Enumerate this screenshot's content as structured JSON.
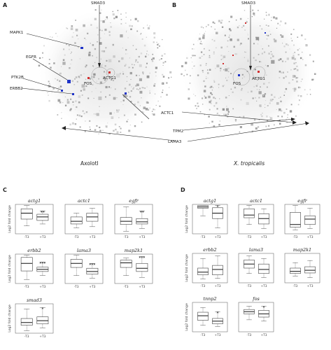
{
  "panels": {
    "A": "A",
    "B": "B",
    "C": "C",
    "D": "D"
  },
  "network_labels": {
    "smad3": "SMAD3",
    "mapk1": "MAPK1",
    "egfr": "EGFR",
    "ptk2b": "PTK2B",
    "erbb2": "ERBB2",
    "fos": "FOS",
    "actg1": "ACTG1",
    "actc1": "ACTC1",
    "tpm2": "TPM2",
    "lama3": "LAMA3"
  },
  "species": {
    "left": "Axolotl",
    "right": "X. tropicalis"
  },
  "colors": {
    "up": "#d32f2f",
    "down": "#1f33c8",
    "node": "#bdbdbd"
  },
  "panel_c": [
    {
      "title": "actg1",
      "ylabel": "Log2 fold change",
      "x_labels": [
        "-T3",
        "+T3"
      ],
      "sig": "**",
      "minus": [
        0.25,
        0.5,
        0.72,
        0.88,
        1.0
      ],
      "plus": [
        0.32,
        0.45,
        0.58,
        0.68,
        0.8
      ]
    },
    {
      "title": "actc1",
      "x_labels": [
        "-T3",
        "+T3"
      ],
      "sig": "",
      "minus": [
        0.18,
        0.32,
        0.42,
        0.58,
        0.72
      ],
      "plus": [
        0.22,
        0.42,
        0.58,
        0.72,
        0.9
      ]
    },
    {
      "title": "egfr",
      "x_labels": [
        "-T3",
        "+T3"
      ],
      "sig": "**",
      "minus": [
        0.05,
        0.3,
        0.42,
        0.56,
        0.95
      ],
      "plus": [
        0.15,
        0.32,
        0.4,
        0.52,
        0.8
      ]
    },
    {
      "title": "erbb2",
      "ylabel": "Log2 fold change",
      "x_labels": [
        "-T3",
        "+T3"
      ],
      "sig": "***",
      "minus": [
        0.1,
        0.42,
        0.7,
        0.92,
        1.0
      ],
      "plus": [
        0.25,
        0.4,
        0.48,
        0.56,
        0.75
      ]
    },
    {
      "title": "lama3",
      "x_labels": [
        "-T3",
        "+T3"
      ],
      "sig": "***",
      "minus": [
        0.25,
        0.55,
        0.7,
        0.85,
        1.0
      ],
      "plus": [
        0.15,
        0.3,
        0.4,
        0.52,
        0.7
      ]
    },
    {
      "title": "map2k1",
      "x_labels": [
        "-T3",
        "+T3"
      ],
      "sig": "***",
      "minus": [
        0.25,
        0.55,
        0.72,
        0.82,
        0.9
      ],
      "plus": [
        0.18,
        0.4,
        0.52,
        0.7,
        0.95
      ]
    },
    {
      "title": "smad3",
      "ylabel": "Log2 fold change",
      "x_labels": [
        "-T3",
        "+T3"
      ],
      "sig": "*",
      "minus": [
        0.05,
        0.25,
        0.35,
        0.5,
        0.85
      ],
      "plus": [
        0.15,
        0.3,
        0.42,
        0.56,
        0.9
      ]
    }
  ],
  "panel_d": [
    {
      "title": "actg1",
      "ylabel": "Log2 fold change",
      "x_labels": [
        "-T3",
        "+T3"
      ],
      "sig": "*",
      "minus": [
        0.62,
        0.9,
        0.95,
        1.0,
        1.0
      ],
      "plus": [
        0.18,
        0.52,
        0.72,
        0.92,
        1.0
      ]
    },
    {
      "title": "actc1",
      "x_labels": [
        "-T3",
        "+T3"
      ],
      "sig": "",
      "minus": [
        0.3,
        0.55,
        0.65,
        0.88,
        1.0
      ],
      "plus": [
        0.15,
        0.32,
        0.52,
        0.7,
        0.88
      ]
    },
    {
      "title": "egfr",
      "x_labels": [
        "-T3",
        "+T3"
      ],
      "sig": "",
      "minus": [
        0.1,
        0.2,
        0.3,
        0.75,
        1.0
      ],
      "plus": [
        0.15,
        0.3,
        0.5,
        0.62,
        0.9
      ]
    },
    {
      "title": "erbb2",
      "ylabel": "Log2 fold change",
      "x_labels": [
        "-T3",
        "+T3"
      ],
      "sig": "",
      "minus": [
        0.1,
        0.25,
        0.35,
        0.5,
        0.85
      ],
      "plus": [
        0.12,
        0.25,
        0.45,
        0.6,
        0.95
      ]
    },
    {
      "title": "lama3",
      "x_labels": [
        "-T3",
        "+T3"
      ],
      "sig": "",
      "minus": [
        0.3,
        0.5,
        0.65,
        0.8,
        0.95
      ],
      "plus": [
        0.15,
        0.3,
        0.45,
        0.65,
        0.85
      ]
    },
    {
      "title": "map2k1",
      "x_labels": [
        "-T3",
        "+T3"
      ],
      "sig": "",
      "minus": [
        0.2,
        0.3,
        0.38,
        0.5,
        0.7
      ],
      "plus": [
        0.15,
        0.32,
        0.42,
        0.55,
        0.78
      ]
    },
    {
      "title": "tnnp2",
      "ylabel": "Log2 fold change",
      "x_labels": [
        "-T3",
        "+T3"
      ],
      "sig": "*",
      "minus": [
        0.2,
        0.38,
        0.55,
        0.68,
        0.85
      ],
      "plus": [
        0.15,
        0.25,
        0.35,
        0.45,
        0.7
      ]
    },
    {
      "title": "fos",
      "x_labels": [
        "-T3",
        "+T3"
      ],
      "sig": "*",
      "minus": [
        0.4,
        0.62,
        0.7,
        0.78,
        0.9
      ],
      "plus": [
        0.35,
        0.5,
        0.62,
        0.75,
        0.9
      ]
    }
  ]
}
